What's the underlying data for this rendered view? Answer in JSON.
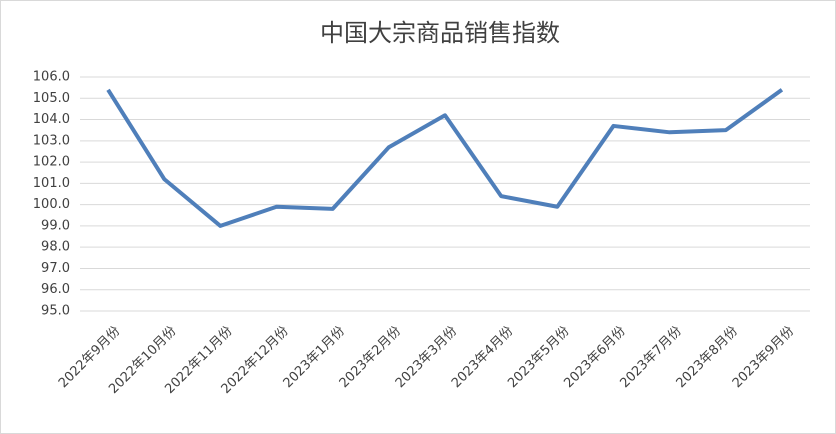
{
  "chart_data": {
    "type": "line",
    "title": "中国大宗商品销售指数",
    "categories": [
      "2022年9月份",
      "2022年10月份",
      "2022年11月份",
      "2022年12月份",
      "2023年1月份",
      "2023年2月份",
      "2023年3月份",
      "2023年4月份",
      "2023年5月份",
      "2023年6月份",
      "2023年7月份",
      "2023年8月份",
      "2023年9月份"
    ],
    "series": [
      {
        "name": "中国大宗商品销售指数",
        "color": "#4f7fba",
        "values": [
          105.4,
          101.2,
          99.0,
          99.9,
          99.8,
          102.7,
          104.2,
          100.4,
          99.9,
          103.7,
          103.4,
          103.5,
          105.4
        ]
      }
    ],
    "ylim": [
      95,
      106
    ],
    "yticks": [
      {
        "value": 95,
        "label": "95.0"
      },
      {
        "value": 96,
        "label": "96.0"
      },
      {
        "value": 97,
        "label": "97.0"
      },
      {
        "value": 98,
        "label": "98.0"
      },
      {
        "value": 99,
        "label": "99.0"
      },
      {
        "value": 100,
        "label": "100.0"
      },
      {
        "value": 101,
        "label": "101.0"
      },
      {
        "value": 102,
        "label": "102.0"
      },
      {
        "value": 103,
        "label": "103.0"
      },
      {
        "value": 104,
        "label": "104.0"
      },
      {
        "value": 105,
        "label": "105.0"
      },
      {
        "value": 106,
        "label": "106.0"
      }
    ],
    "grid": true
  }
}
